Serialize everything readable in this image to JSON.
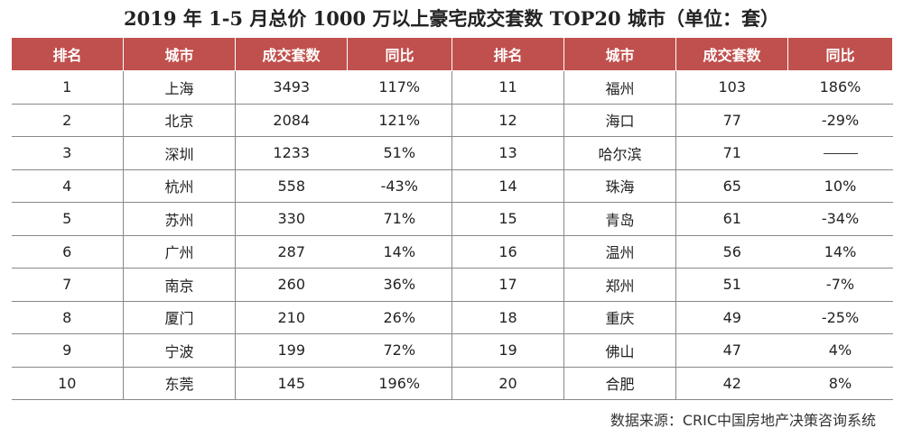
{
  "title": "2019 年 1-5 月总价 1000 万以上豪宅成交套数 TOP20 城市（单位：套）",
  "headers": [
    "排名",
    "城市",
    "成交套数",
    "同比",
    "排名",
    "城市",
    "成交套数",
    "同比"
  ],
  "left_rows": [
    {
      "rank": "1",
      "city": "上海",
      "count": "3493",
      "yoy": "117%"
    },
    {
      "rank": "2",
      "city": "北京",
      "count": "2084",
      "yoy": "121%"
    },
    {
      "rank": "3",
      "city": "深圳",
      "count": "1233",
      "yoy": "51%"
    },
    {
      "rank": "4",
      "city": "杭州",
      "count": "558",
      "yoy": "-43%"
    },
    {
      "rank": "5",
      "city": "苏州",
      "count": "330",
      "yoy": "71%"
    },
    {
      "rank": "6",
      "city": "广州",
      "count": "287",
      "yoy": "14%"
    },
    {
      "rank": "7",
      "city": "南京",
      "count": "260",
      "yoy": "36%"
    },
    {
      "rank": "8",
      "city": "厦门",
      "count": "210",
      "yoy": "26%"
    },
    {
      "rank": "9",
      "city": "宁波",
      "count": "199",
      "yoy": "72%"
    },
    {
      "rank": "10",
      "city": "东莞",
      "count": "145",
      "yoy": "196%"
    }
  ],
  "right_rows": [
    {
      "rank": "11",
      "city": "福州",
      "count": "103",
      "yoy": "186%"
    },
    {
      "rank": "12",
      "city": "海口",
      "count": "77",
      "yoy": "-29%"
    },
    {
      "rank": "13",
      "city": "哈尔滨",
      "count": "71",
      "yoy": ""
    },
    {
      "rank": "14",
      "city": "珠海",
      "count": "65",
      "yoy": "10%"
    },
    {
      "rank": "15",
      "city": "青岛",
      "count": "61",
      "yoy": "-34%"
    },
    {
      "rank": "16",
      "city": "温州",
      "count": "56",
      "yoy": "14%"
    },
    {
      "rank": "17",
      "city": "郑州",
      "count": "51",
      "yoy": "-7%"
    },
    {
      "rank": "18",
      "city": "重庆",
      "count": "49",
      "yoy": "-25%"
    },
    {
      "rank": "19",
      "city": "佛山",
      "count": "47",
      "yoy": "4%"
    },
    {
      "rank": "20",
      "city": "合肥",
      "count": "42",
      "yoy": "8%"
    }
  ],
  "source": "数据来源：CRIC中国房地产决策咨询系统"
}
